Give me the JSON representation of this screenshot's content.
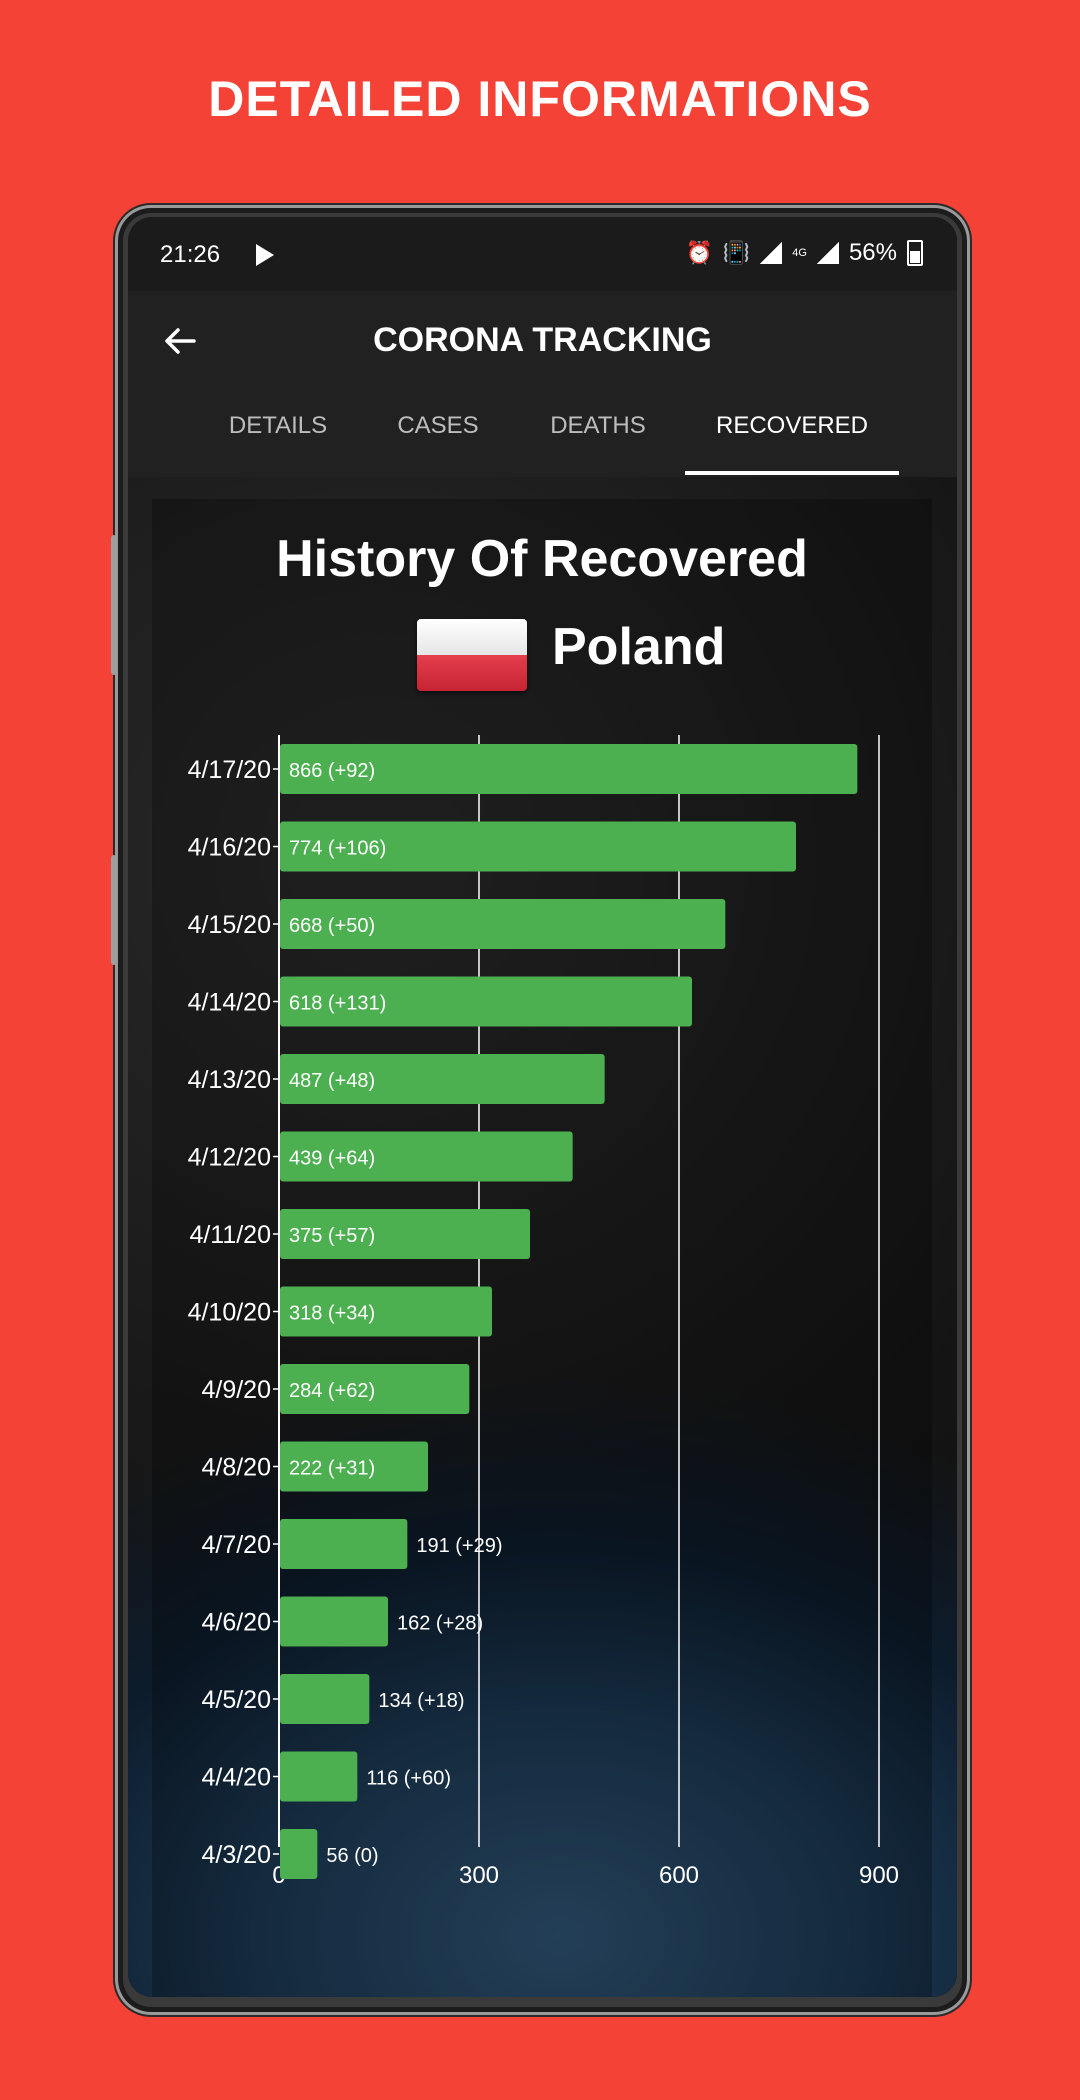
{
  "promo": {
    "title": "DETAILED INFORMATIONS"
  },
  "status_bar": {
    "time": "21:26",
    "battery": "56%",
    "network": "4G"
  },
  "app_bar": {
    "title": "CORONA TRACKING"
  },
  "tabs": [
    {
      "label": "DETAILS",
      "active": false
    },
    {
      "label": "CASES",
      "active": false
    },
    {
      "label": "DEATHS",
      "active": false
    },
    {
      "label": "RECOVERED",
      "active": true
    }
  ],
  "chart_header": {
    "title": "History Of Recovered",
    "country": "Poland"
  },
  "colors": {
    "background": "#f44336",
    "bar": "#4caf50"
  },
  "chart_data": {
    "type": "bar",
    "orientation": "horizontal",
    "categories": [
      "4/17/20",
      "4/16/20",
      "4/15/20",
      "4/14/20",
      "4/13/20",
      "4/12/20",
      "4/11/20",
      "4/10/20",
      "4/9/20",
      "4/8/20",
      "4/7/20",
      "4/6/20",
      "4/5/20",
      "4/4/20",
      "4/3/20"
    ],
    "values": [
      866,
      774,
      668,
      618,
      487,
      439,
      375,
      318,
      284,
      222,
      191,
      162,
      134,
      116,
      56
    ],
    "labels": [
      "866  (+92)",
      "774  (+106)",
      "668  (+50)",
      "618  (+131)",
      "487  (+48)",
      "439  (+64)",
      "375  (+57)",
      "318  (+34)",
      "284  (+62)",
      "222  (+31)",
      "191  (+29)",
      "162  (+28)",
      "134  (+18)",
      "116  (+60)",
      "56  (0)"
    ],
    "xlim": [
      0,
      900
    ],
    "xticks": [
      0,
      300,
      600,
      900
    ],
    "grid": true
  }
}
